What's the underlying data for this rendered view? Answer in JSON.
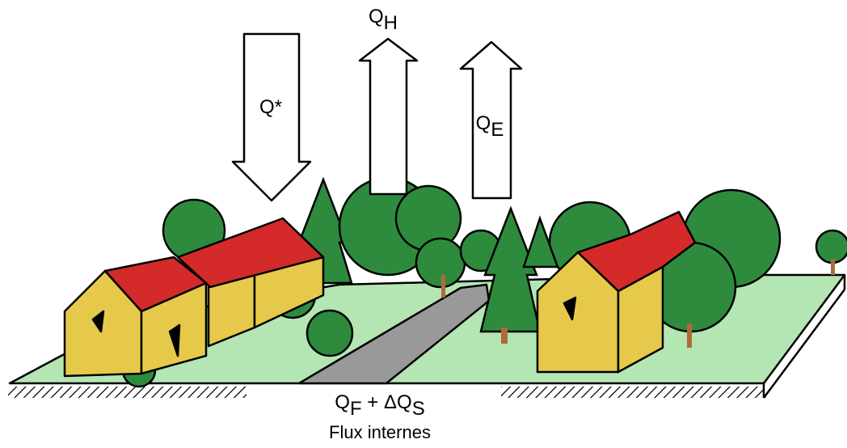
{
  "fluxes": [
    {
      "symbol": "Q*"
    },
    {
      "symbol": "Q",
      "subscript": "H"
    },
    {
      "symbol": "Q",
      "subscript": "E"
    }
  ],
  "storage": {
    "parts": [
      {
        "symbol": "Q",
        "subscript": "F"
      },
      {
        "symbol": " + ΔQ",
        "subscript": "S"
      }
    ],
    "caption": "Flux internes"
  }
}
